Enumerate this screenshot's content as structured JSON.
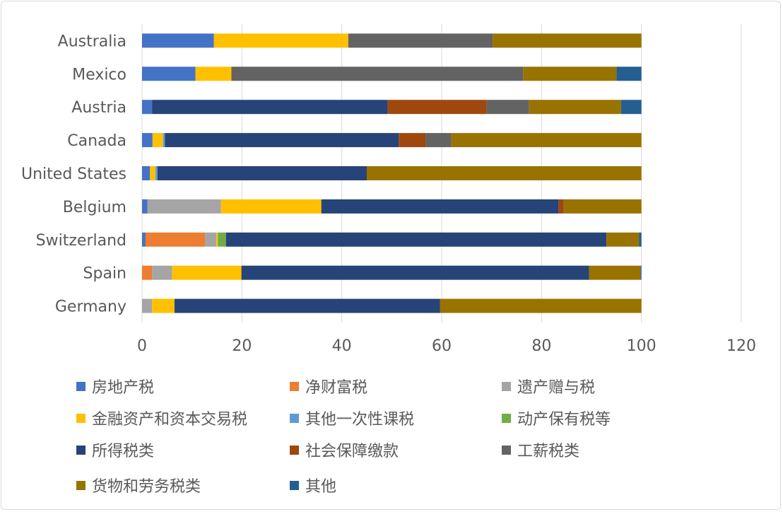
{
  "chart_data": {
    "type": "bar",
    "orientation": "horizontal",
    "stacked": true,
    "title": "",
    "xlabel": "",
    "ylabel": "",
    "xlim": [
      0,
      120
    ],
    "xticks": [
      0,
      20,
      40,
      60,
      80,
      100,
      120
    ],
    "grid": true,
    "legend_position": "bottom",
    "categories": [
      "Australia",
      "Mexico",
      "Austria",
      "Canada",
      "United States",
      "Belgium",
      "Switzerland",
      "Spain",
      "Germany"
    ],
    "series": [
      {
        "name": "房地产税",
        "color": "#4472C4",
        "values": [
          14.4,
          10.7,
          2.0,
          2.1,
          1.6,
          1.1,
          0.7,
          0,
          0
        ]
      },
      {
        "name": "净财富税",
        "color": "#ED7D31",
        "values": [
          0,
          0,
          0,
          0,
          0,
          0,
          11.9,
          2.0,
          0
        ]
      },
      {
        "name": "遗产赠与税",
        "color": "#A5A5A5",
        "values": [
          0,
          0,
          0,
          0,
          0,
          14.7,
          2.3,
          4.0,
          2.0
        ]
      },
      {
        "name": "金融资产和资本交易税",
        "color": "#FFC000",
        "values": [
          26.9,
          7.2,
          0,
          2.1,
          1.1,
          20.1,
          0.3,
          13.9,
          4.5
        ]
      },
      {
        "name": "其他一次性课税",
        "color": "#5B9BD5",
        "values": [
          0,
          0,
          0,
          0.4,
          0.4,
          0,
          0,
          0,
          0
        ]
      },
      {
        "name": "动产保有税等",
        "color": "#70AD47",
        "values": [
          0,
          0,
          0,
          0,
          0,
          0,
          1.6,
          0,
          0
        ]
      },
      {
        "name": "所得税类",
        "color": "#264478",
        "values": [
          0,
          0,
          47.2,
          46.8,
          41.9,
          47.5,
          76.2,
          69.6,
          53.2
        ]
      },
      {
        "name": "社会保障缴款",
        "color": "#9E480E",
        "values": [
          0,
          0,
          19.8,
          5.4,
          0,
          1.0,
          0,
          0,
          0
        ]
      },
      {
        "name": "工薪税类",
        "color": "#636363",
        "values": [
          28.9,
          58.4,
          8.5,
          5.1,
          0,
          0,
          0,
          0,
          0
        ]
      },
      {
        "name": "货物和劳务税类",
        "color": "#997300",
        "values": [
          29.8,
          18.7,
          18.4,
          38.1,
          55.0,
          15.6,
          6.5,
          10.3,
          40.3
        ]
      },
      {
        "name": "其他",
        "color": "#255E91",
        "values": [
          0,
          5.0,
          4.1,
          0,
          0,
          0,
          0.5,
          0.2,
          0
        ]
      }
    ]
  }
}
